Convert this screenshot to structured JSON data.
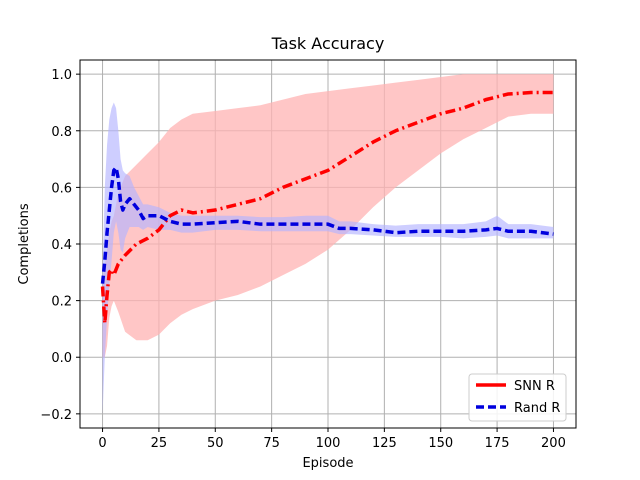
{
  "chart_data": {
    "type": "line",
    "title": "Task Accuracy",
    "xlabel": "Episode",
    "ylabel": "Completions",
    "xlim": [
      -10,
      210
    ],
    "ylim": [
      -0.25,
      1.05
    ],
    "x_ticks": [
      0,
      25,
      50,
      75,
      100,
      125,
      150,
      175,
      200
    ],
    "y_ticks": [
      -0.2,
      0.0,
      0.2,
      0.4,
      0.6,
      0.8,
      1.0
    ],
    "x_tick_labels": [
      "0",
      "25",
      "50",
      "75",
      "100",
      "125",
      "150",
      "175",
      "200"
    ],
    "y_tick_labels": [
      "−0.2",
      "0.0",
      "0.2",
      "0.4",
      "0.6",
      "0.8",
      "1.0"
    ],
    "grid": true,
    "legend_position": "lower-right",
    "series": [
      {
        "name": "SNN R",
        "color": "#ff0000",
        "band_color": "#ffb3b3",
        "line_style": "dashdot",
        "x": [
          0,
          1,
          2,
          3,
          4,
          5,
          7,
          10,
          15,
          20,
          25,
          30,
          35,
          40,
          50,
          60,
          70,
          80,
          90,
          100,
          110,
          120,
          130,
          140,
          150,
          160,
          170,
          180,
          190,
          200
        ],
        "mean": [
          0.25,
          0.12,
          0.22,
          0.3,
          0.31,
          0.29,
          0.33,
          0.36,
          0.4,
          0.42,
          0.45,
          0.5,
          0.52,
          0.51,
          0.52,
          0.54,
          0.56,
          0.6,
          0.63,
          0.66,
          0.71,
          0.76,
          0.8,
          0.83,
          0.86,
          0.88,
          0.91,
          0.93,
          0.935,
          0.935
        ],
        "lower": [
          0.0,
          0.0,
          0.04,
          0.14,
          0.18,
          0.2,
          0.16,
          0.09,
          0.06,
          0.06,
          0.08,
          0.12,
          0.15,
          0.17,
          0.2,
          0.22,
          0.25,
          0.29,
          0.33,
          0.38,
          0.45,
          0.53,
          0.6,
          0.66,
          0.72,
          0.77,
          0.81,
          0.85,
          0.86,
          0.86
        ],
        "upper": [
          0.28,
          0.32,
          0.38,
          0.44,
          0.48,
          0.5,
          0.58,
          0.64,
          0.68,
          0.72,
          0.76,
          0.81,
          0.84,
          0.86,
          0.87,
          0.88,
          0.89,
          0.91,
          0.93,
          0.94,
          0.95,
          0.96,
          0.97,
          0.98,
          0.99,
          1.0,
          1.0,
          1.0,
          1.0,
          1.0
        ]
      },
      {
        "name": "Rand R",
        "color": "#0000dd",
        "band_color": "#b3b3ff",
        "line_style": "dashed",
        "x": [
          0,
          1,
          2,
          3,
          4,
          5,
          6,
          7,
          8,
          9,
          10,
          12,
          14,
          16,
          18,
          20,
          25,
          30,
          35,
          40,
          50,
          60,
          70,
          80,
          90,
          100,
          105,
          110,
          120,
          130,
          140,
          150,
          160,
          170,
          175,
          180,
          190,
          200
        ],
        "mean": [
          0.26,
          0.34,
          0.44,
          0.52,
          0.6,
          0.66,
          0.67,
          0.63,
          0.55,
          0.52,
          0.54,
          0.56,
          0.54,
          0.52,
          0.49,
          0.5,
          0.5,
          0.48,
          0.47,
          0.47,
          0.475,
          0.48,
          0.47,
          0.47,
          0.47,
          0.47,
          0.455,
          0.455,
          0.45,
          0.44,
          0.445,
          0.445,
          0.445,
          0.45,
          0.455,
          0.445,
          0.445,
          0.435
        ],
        "lower": [
          -0.2,
          0.0,
          0.14,
          0.26,
          0.34,
          0.44,
          0.48,
          0.44,
          0.38,
          0.37,
          0.42,
          0.46,
          0.46,
          0.46,
          0.45,
          0.46,
          0.45,
          0.45,
          0.44,
          0.44,
          0.45,
          0.45,
          0.445,
          0.445,
          0.445,
          0.445,
          0.435,
          0.435,
          0.43,
          0.425,
          0.425,
          0.425,
          0.42,
          0.425,
          0.43,
          0.42,
          0.42,
          0.42
        ],
        "upper": [
          0.3,
          0.6,
          0.75,
          0.84,
          0.88,
          0.9,
          0.88,
          0.8,
          0.7,
          0.66,
          0.65,
          0.64,
          0.6,
          0.57,
          0.54,
          0.54,
          0.53,
          0.51,
          0.5,
          0.5,
          0.5,
          0.5,
          0.495,
          0.495,
          0.5,
          0.5,
          0.48,
          0.48,
          0.47,
          0.465,
          0.47,
          0.47,
          0.47,
          0.48,
          0.5,
          0.47,
          0.47,
          0.46
        ]
      }
    ]
  }
}
